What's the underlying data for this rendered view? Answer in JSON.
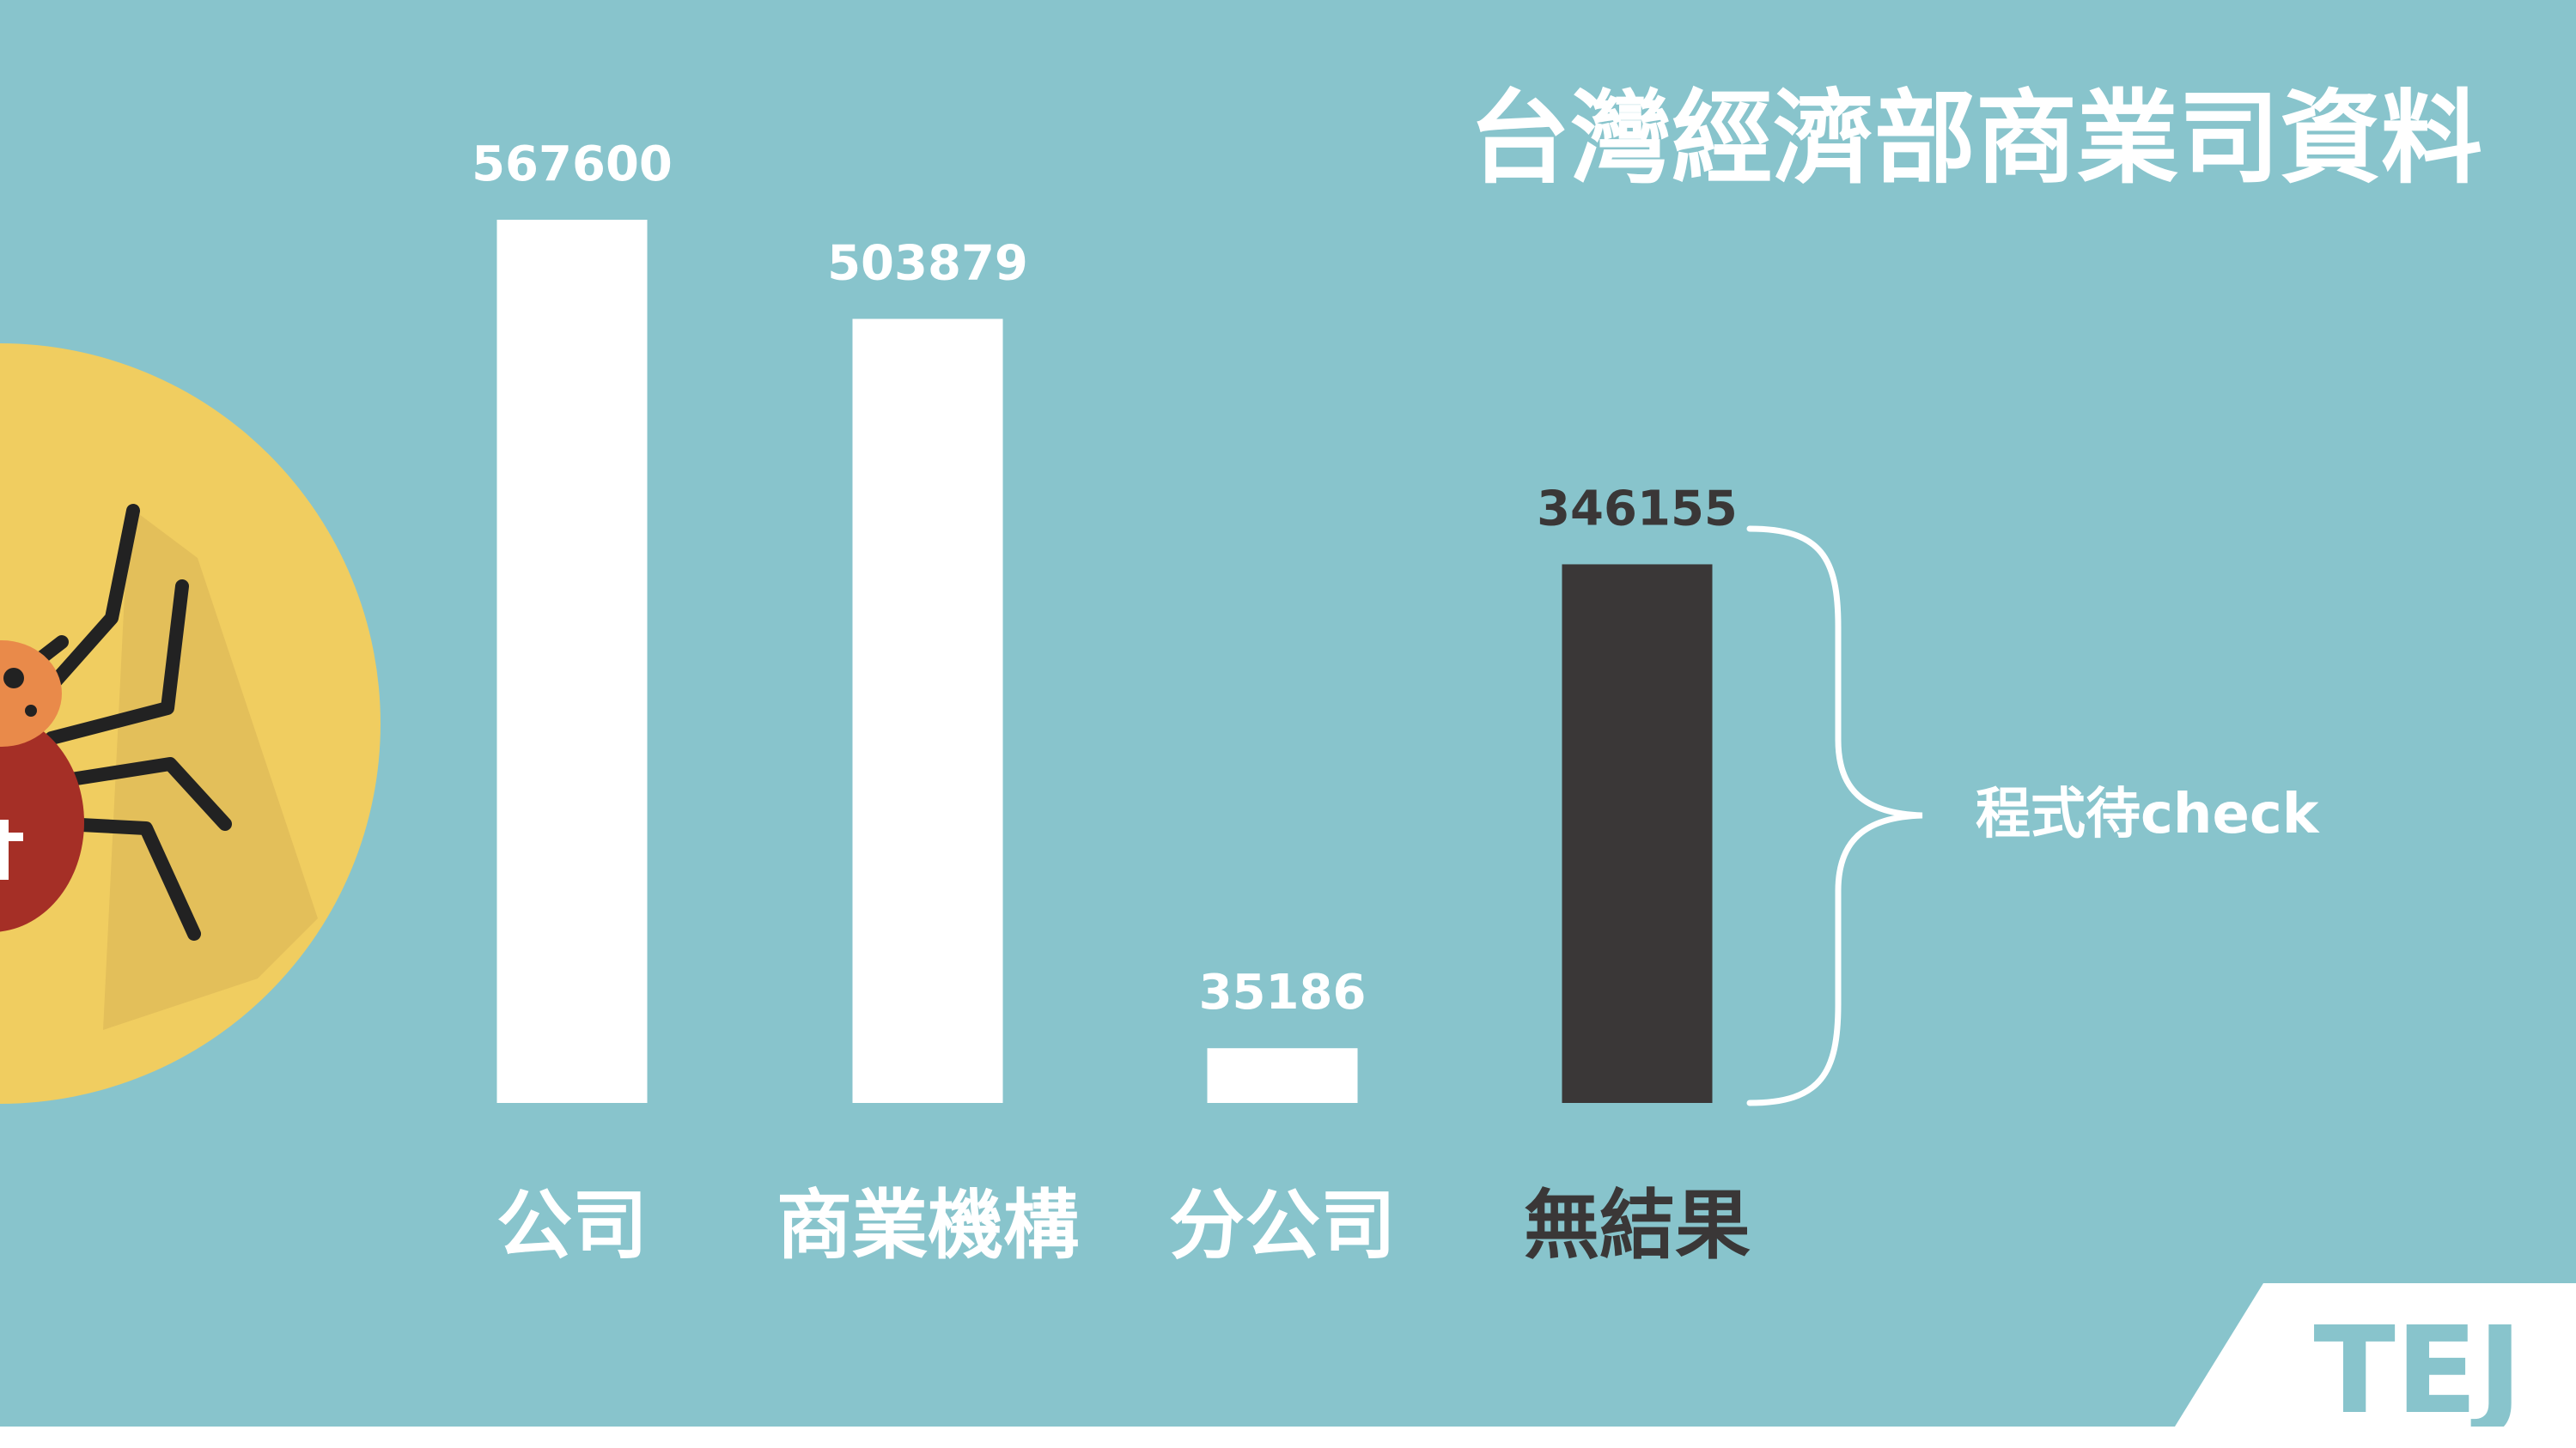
{
  "colors": {
    "background": "#88c4cc",
    "bar_default": "#ffffff",
    "bar_highlight": "#3a3737",
    "label_default": "#ffffff",
    "label_highlight": "#3a3737",
    "illustration_circle": "#f0cd60",
    "illustration_shadow": "#e3bf5a",
    "beetle_head": "#e98a4a",
    "beetle_body": "#a52f26",
    "beetle_legs": "#222222",
    "logo_panel": "#ffffff",
    "logo_text": "#88c4cc"
  },
  "illustration": {
    "icon": "beetle-bug-icon"
  },
  "chart_data": {
    "type": "bar",
    "title": "台灣經濟部商業司資料",
    "categories": [
      "公司",
      "商業機構",
      "分公司",
      "無結果"
    ],
    "values": [
      567600,
      503879,
      35186,
      346155
    ],
    "value_labels": [
      "567600",
      "503879",
      "35186",
      "346155"
    ],
    "highlight_index": 3,
    "ylim": [
      0,
      567600
    ],
    "grid": false,
    "annotation": "程式待check"
  },
  "logo": {
    "text": "TEJ"
  }
}
